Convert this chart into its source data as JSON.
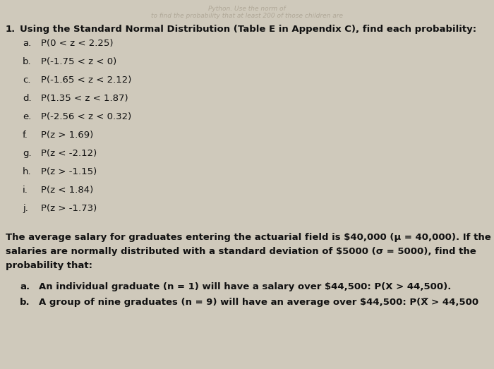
{
  "background_color": "#cfc9bb",
  "text_color": "#111111",
  "faded_color": "#b0a898",
  "fontsize": 9.5,
  "fontsize_faded": 6.5,
  "faded_line1": "Python. Use the norm of",
  "faded_line2": "to find the probability that at least 200 of those children are",
  "q_number": "1.",
  "header": "Using the Standard Normal Distribution (Table E in Appendix C), find each probability:",
  "items": [
    [
      "a.",
      "P(0 < z < 2.25)"
    ],
    [
      "b.",
      "P(-1.75 < z < 0)"
    ],
    [
      "c.",
      "P(-1.65 < z < 2.12)"
    ],
    [
      "d.",
      "P(1.35 < z < 1.87)"
    ],
    [
      "e.",
      "P(-2.56 < z < 0.32)"
    ],
    [
      "f.",
      "P(z > 1.69)"
    ],
    [
      "g.",
      "P(z < -2.12)"
    ],
    [
      "h.",
      "P(z > -1.15)"
    ],
    [
      "i.",
      "P(z < 1.84)"
    ],
    [
      "j.",
      "P(z > -1.73)"
    ]
  ],
  "para_line1": "The average salary for graduates entering the actuarial field is $40,000 (μ = 40,000). If the",
  "para_line2": "salaries are normally distributed with a standard deviation of $5000 (σ = 5000), find the",
  "para_line3": "probability that:",
  "sub_items": [
    [
      "a.",
      "An individual graduate (n = 1) will have a salary over $44,500: P(X > 44,500)."
    ],
    [
      "b.",
      "A group of nine graduates (n = 9) will have an average over $44,500: P(X̅ > 44,500"
    ]
  ]
}
